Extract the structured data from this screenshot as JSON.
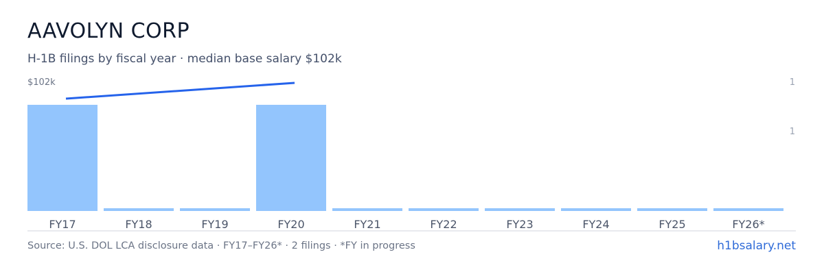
{
  "header": {
    "title": "AAVOLYN CORP",
    "subtitle": "H-1B filings by fiscal year · median base salary $102k"
  },
  "footer": {
    "source": "Source: U.S. DOL LCA disclosure data · FY17–FY26* · 2 filings · *FY in progress",
    "site": "h1bsalary.net"
  },
  "colors": {
    "bar": "#93c5fd",
    "line": "#2563eb",
    "axis": "#d0d5dd",
    "accent_link": "#2f6bd8"
  },
  "chart_data": {
    "type": "bar",
    "categories": [
      "FY17",
      "FY18",
      "FY19",
      "FY20",
      "FY21",
      "FY22",
      "FY23",
      "FY24",
      "FY25",
      "FY26*"
    ],
    "series": [
      {
        "kind": "bar",
        "axis": "right",
        "values": [
          1,
          0,
          0,
          1,
          0,
          0,
          0,
          0,
          0,
          0
        ]
      },
      {
        "kind": "line",
        "axis": "left",
        "points": [
          {
            "category": "FY17",
            "value": 99
          },
          {
            "category": "FY20",
            "value": 102
          }
        ]
      }
    ],
    "left_axis": {
      "label": "$102k"
    },
    "right_axis": {
      "ticks": [
        "1",
        "1"
      ]
    },
    "grid": false,
    "legend": "none"
  }
}
